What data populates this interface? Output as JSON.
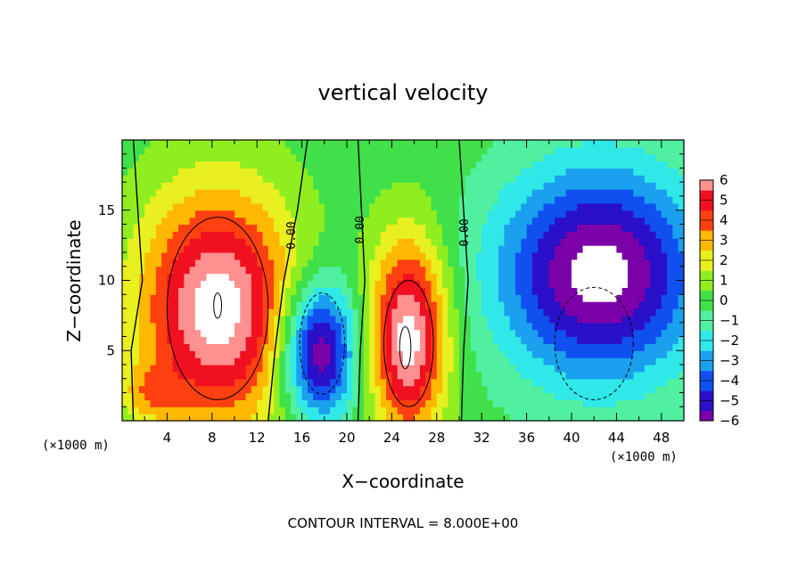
{
  "chart_data": {
    "type": "heatmap",
    "title": "vertical velocity",
    "xlabel": "X−coordinate",
    "ylabel": "Z−coordinate",
    "x_unit_label": "(×1000 m)",
    "y_unit_label": "(×1000 m)",
    "xlim": [
      0,
      50
    ],
    "ylim": [
      0,
      20
    ],
    "x_ticks": [
      "4",
      "8",
      "12",
      "16",
      "20",
      "24",
      "28",
      "32",
      "36",
      "40",
      "44",
      "48"
    ],
    "y_ticks": [
      "5",
      "10",
      "15"
    ],
    "colorbar": {
      "ticks": [
        "6",
        "5",
        "4",
        "3",
        "2",
        "1",
        "0",
        "−1",
        "−2",
        "−3",
        "−4",
        "−5",
        "−6"
      ],
      "range": [
        -6,
        6
      ]
    },
    "contour_labels": [
      "0.00",
      "0.00",
      "0.00"
    ],
    "footer": "CONTOUR INTERVAL = 8.000E+00",
    "features": [
      {
        "x": 8.5,
        "z": 8,
        "w": 7.0,
        "h": 8.5,
        "amp": 7
      },
      {
        "x": 17.5,
        "z": 5,
        "w": 3.3,
        "h": 4.8,
        "amp": -7
      },
      {
        "x": 25.5,
        "z": 6,
        "w": 3.4,
        "h": 7.0,
        "amp": 7
      },
      {
        "x": 42.5,
        "z": 10.5,
        "w": 9.0,
        "h": 7.5,
        "amp": -7
      },
      {
        "x": 2.5,
        "z": 2,
        "w": 2.5,
        "h": 2.0,
        "amp": 2
      }
    ]
  }
}
